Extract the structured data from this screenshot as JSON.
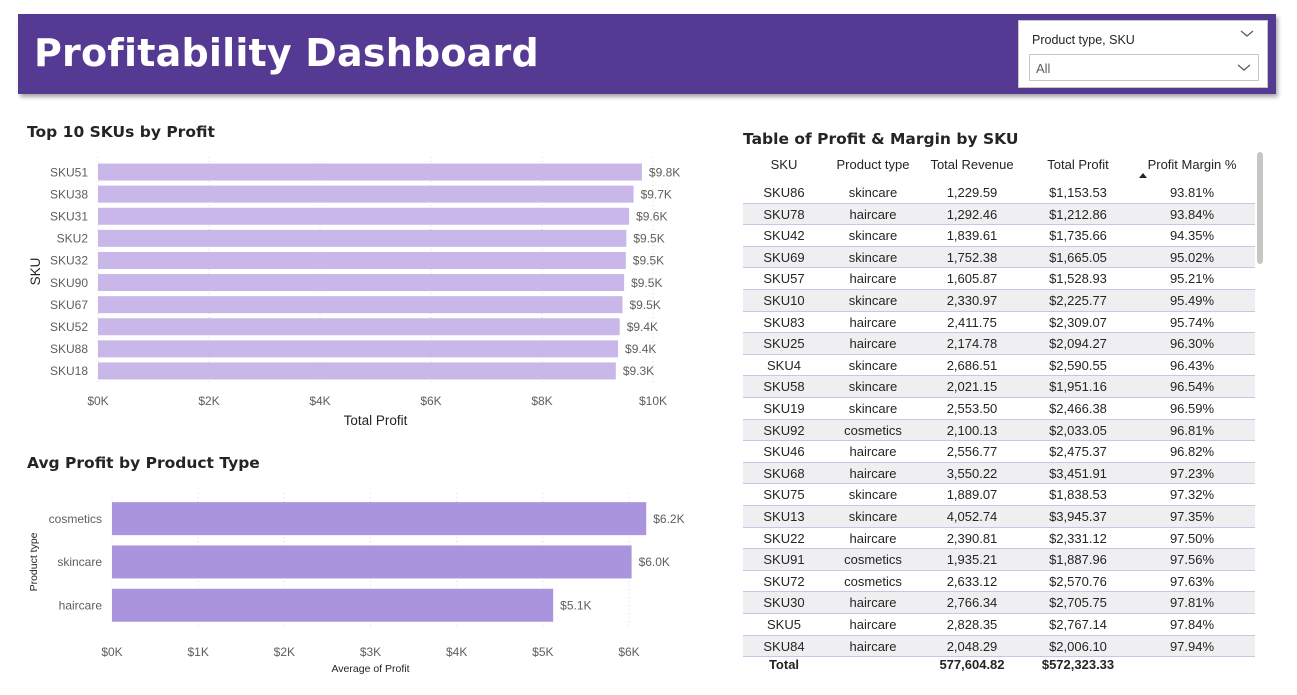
{
  "header": {
    "title": "Profitability Dashboard"
  },
  "slicer": {
    "label": "Product type, SKU",
    "value": "All"
  },
  "colors": {
    "header_bg": "#553a93",
    "bar1": "#c8b7e8",
    "bar2": "#a994dd"
  },
  "chart_data": [
    {
      "type": "bar",
      "orientation": "horizontal",
      "title": "Top 10 SKUs by Profit",
      "xlabel": "Total Profit",
      "ylabel": "SKU",
      "categories": [
        "SKU51",
        "SKU38",
        "SKU31",
        "SKU2",
        "SKU32",
        "SKU90",
        "SKU67",
        "SKU52",
        "SKU88",
        "SKU18"
      ],
      "values": [
        9800,
        9650,
        9570,
        9520,
        9510,
        9480,
        9450,
        9400,
        9370,
        9330
      ],
      "data_labels": [
        "$9.8K",
        "$9.7K",
        "$9.6K",
        "$9.5K",
        "$9.5K",
        "$9.5K",
        "$9.5K",
        "$9.4K",
        "$9.4K",
        "$9.3K"
      ],
      "xlim": [
        0,
        10000
      ],
      "xticks": [
        "$0K",
        "$2K",
        "$4K",
        "$6K",
        "$8K",
        "$10K"
      ],
      "grid": true
    },
    {
      "type": "bar",
      "orientation": "horizontal",
      "title": "Avg Profit by Product Type",
      "xlabel": "Average of Profit",
      "ylabel": "Product type",
      "categories": [
        "cosmetics",
        "skincare",
        "haircare"
      ],
      "values": [
        6200,
        6030,
        5120
      ],
      "data_labels": [
        "$6.2K",
        "$6.0K",
        "$5.1K"
      ],
      "xlim": [
        0,
        6000
      ],
      "xticks": [
        "$0K",
        "$1K",
        "$2K",
        "$3K",
        "$4K",
        "$5K",
        "$6K"
      ],
      "grid": true
    },
    {
      "type": "table",
      "title": "Table of Profit & Margin by SKU",
      "columns": [
        "SKU",
        "Product type",
        "Total Revenue",
        "Total Profit",
        "Profit Margin %"
      ],
      "rows": [
        [
          "SKU86",
          "skincare",
          "1,229.59",
          "$1,153.53",
          "93.81%"
        ],
        [
          "SKU78",
          "haircare",
          "1,292.46",
          "$1,212.86",
          "93.84%"
        ],
        [
          "SKU42",
          "skincare",
          "1,839.61",
          "$1,735.66",
          "94.35%"
        ],
        [
          "SKU69",
          "skincare",
          "1,752.38",
          "$1,665.05",
          "95.02%"
        ],
        [
          "SKU57",
          "haircare",
          "1,605.87",
          "$1,528.93",
          "95.21%"
        ],
        [
          "SKU10",
          "skincare",
          "2,330.97",
          "$2,225.77",
          "95.49%"
        ],
        [
          "SKU83",
          "haircare",
          "2,411.75",
          "$2,309.07",
          "95.74%"
        ],
        [
          "SKU25",
          "haircare",
          "2,174.78",
          "$2,094.27",
          "96.30%"
        ],
        [
          "SKU4",
          "skincare",
          "2,686.51",
          "$2,590.55",
          "96.43%"
        ],
        [
          "SKU58",
          "skincare",
          "2,021.15",
          "$1,951.16",
          "96.54%"
        ],
        [
          "SKU19",
          "skincare",
          "2,553.50",
          "$2,466.38",
          "96.59%"
        ],
        [
          "SKU92",
          "cosmetics",
          "2,100.13",
          "$2,033.05",
          "96.81%"
        ],
        [
          "SKU46",
          "haircare",
          "2,556.77",
          "$2,475.37",
          "96.82%"
        ],
        [
          "SKU68",
          "haircare",
          "3,550.22",
          "$3,451.91",
          "97.23%"
        ],
        [
          "SKU75",
          "skincare",
          "1,889.07",
          "$1,838.53",
          "97.32%"
        ],
        [
          "SKU13",
          "skincare",
          "4,052.74",
          "$3,945.37",
          "97.35%"
        ],
        [
          "SKU22",
          "haircare",
          "2,390.81",
          "$2,331.12",
          "97.50%"
        ],
        [
          "SKU91",
          "cosmetics",
          "1,935.21",
          "$1,887.96",
          "97.56%"
        ],
        [
          "SKU72",
          "cosmetics",
          "2,633.12",
          "$2,570.76",
          "97.63%"
        ],
        [
          "SKU30",
          "haircare",
          "2,766.34",
          "$2,705.75",
          "97.81%"
        ],
        [
          "SKU5",
          "haircare",
          "2,828.35",
          "$2,767.14",
          "97.84%"
        ],
        [
          "SKU84",
          "haircare",
          "2,048.29",
          "$2,006.10",
          "97.94%"
        ]
      ],
      "total": {
        "label": "Total",
        "revenue": "577,604.82",
        "profit": "$572,323.33"
      },
      "sort": {
        "column": "Profit Margin %",
        "direction": "ascending"
      }
    }
  ]
}
